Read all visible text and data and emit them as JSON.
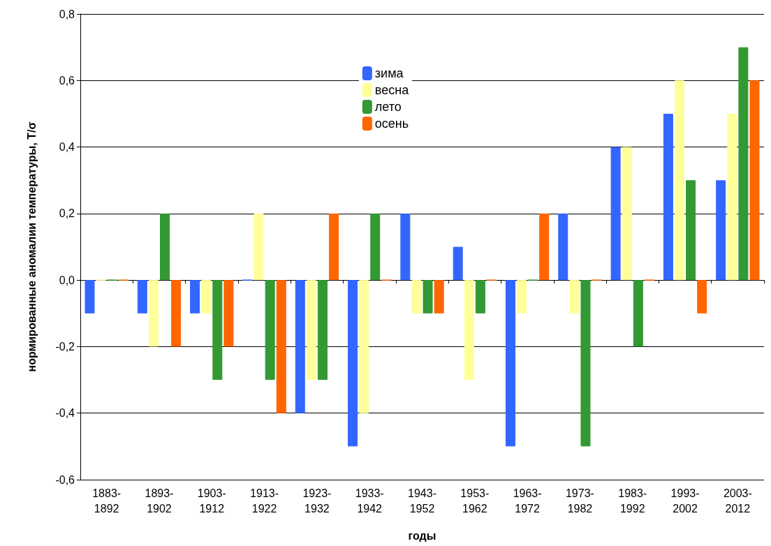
{
  "chart_data": {
    "type": "bar",
    "xlabel": "годы",
    "ylabel": "нормированные аномалии температуры, T/σ",
    "categories": [
      "1883-1892",
      "1893-1902",
      "1903-1912",
      "1913-1922",
      "1923-1932",
      "1933-1942",
      "1943-1952",
      "1953-1962",
      "1963-1972",
      "1973-1982",
      "1983-1992",
      "1993-2002",
      "2003-2012"
    ],
    "series": [
      {
        "name": "зима",
        "color": "#3366ff",
        "values": [
          -0.1,
          -0.1,
          -0.1,
          0,
          -0.4,
          -0.5,
          0.2,
          0.1,
          -0.5,
          0.2,
          0.4,
          0.5,
          0.3
        ]
      },
      {
        "name": "весна",
        "color": "#ffff99",
        "values": [
          0,
          -0.2,
          -0.1,
          0.2,
          -0.3,
          -0.4,
          -0.1,
          -0.3,
          -0.1,
          -0.1,
          0.4,
          0.6,
          0.5
        ]
      },
      {
        "name": "лето",
        "color": "#339933",
        "values": [
          0,
          0.2,
          -0.3,
          -0.3,
          -0.3,
          0.2,
          -0.1,
          -0.1,
          0,
          -0.5,
          -0.2,
          0.3,
          0.7
        ]
      },
      {
        "name": "осень",
        "color": "#ff6600",
        "values": [
          0,
          -0.2,
          -0.2,
          -0.4,
          0.2,
          0,
          -0.1,
          0,
          0.2,
          0,
          0,
          -0.1,
          0.6
        ]
      }
    ],
    "ylim": [
      -0.6,
      0.8
    ],
    "yticks": [
      {
        "value": -0.6,
        "label": "-0,6"
      },
      {
        "value": -0.4,
        "label": "-0,4"
      },
      {
        "value": -0.2,
        "label": "-0,2"
      },
      {
        "value": 0,
        "label": "0,0"
      },
      {
        "value": 0.2,
        "label": "0,2"
      },
      {
        "value": 0.4,
        "label": "0,4"
      },
      {
        "value": 0.6,
        "label": "0,6"
      },
      {
        "value": 0.8,
        "label": "0,8"
      }
    ],
    "grid": "y",
    "legend": "top"
  }
}
